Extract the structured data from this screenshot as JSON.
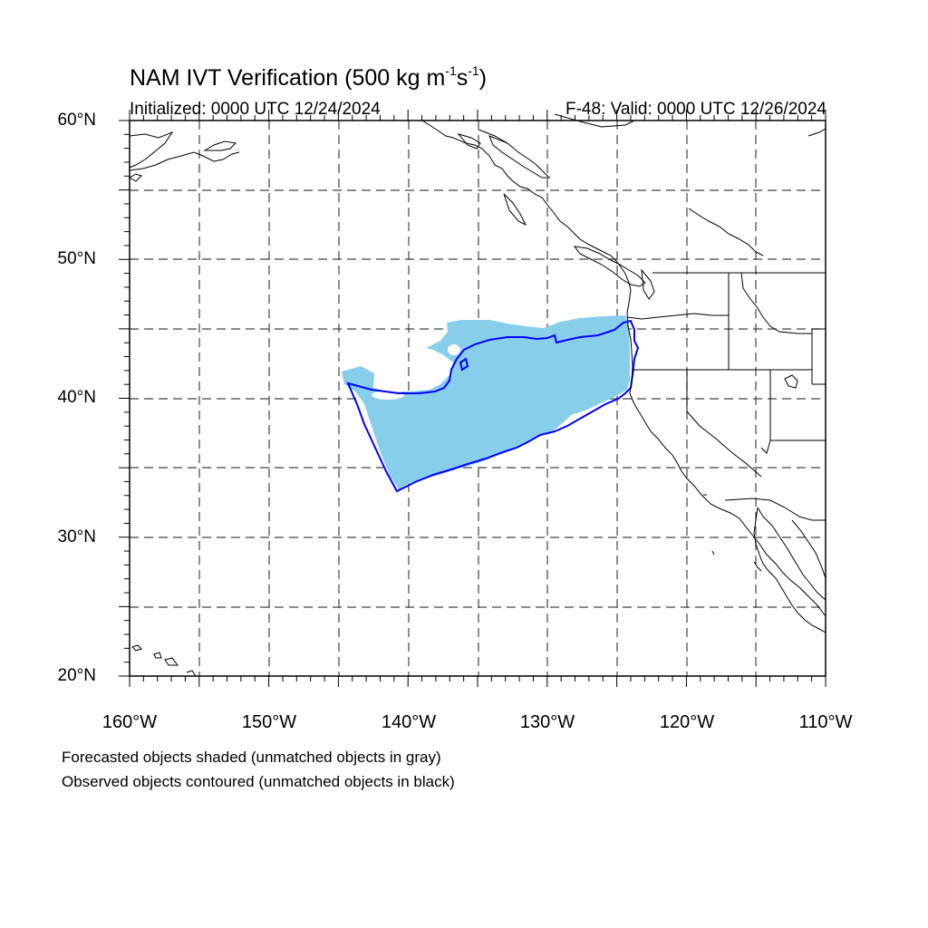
{
  "title": {
    "main": "NAM IVT Verification (500 kg m",
    "exp1": "-1",
    "mid": "s",
    "exp2": "-1",
    "end": ")"
  },
  "initialized": "Initialized: 0000 UTC 12/24/2024",
  "valid": "F-48: Valid: 0000 UTC 12/26/2024",
  "lat_labels": [
    "60°N",
    "50°N",
    "40°N",
    "30°N",
    "20°N"
  ],
  "lon_labels": [
    "160°W",
    "150°W",
    "140°W",
    "130°W",
    "120°W",
    "110°W"
  ],
  "notes": [
    "Forecasted objects shaded (unmatched objects in gray)",
    "Observed objects contoured (unmatched objects in black)"
  ],
  "colors": {
    "forecast_fill": "#87ceeb",
    "observed_contour": "#0000ff",
    "coastline": "#000000",
    "grid": "#444444"
  },
  "map_extent": {
    "lon_min": -160,
    "lon_max": -110,
    "lat_min": 20,
    "lat_max": 60
  }
}
